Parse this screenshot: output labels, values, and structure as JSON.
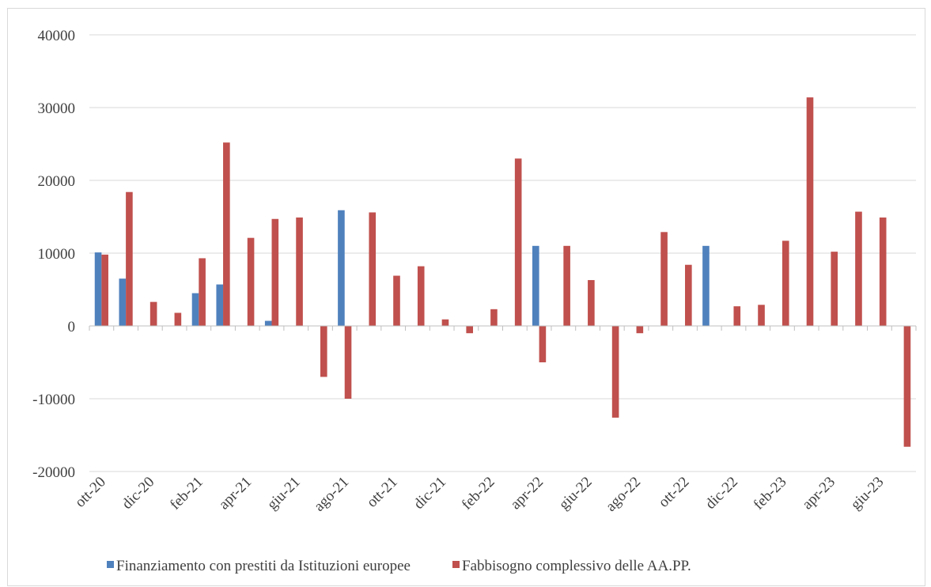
{
  "chart_data": {
    "type": "bar",
    "categories": [
      "ott-20",
      null,
      "dic-20",
      null,
      "feb-21",
      null,
      "apr-21",
      null,
      "giu-21",
      null,
      "ago-21",
      null,
      "ott-21",
      null,
      "dic-21",
      null,
      "feb-22",
      null,
      "apr-22",
      null,
      "giu-22",
      null,
      "ago-22",
      null,
      "ott-22",
      null,
      "dic-22",
      null,
      "feb-23",
      null,
      "apr-23",
      null,
      "giu-23",
      null
    ],
    "series": [
      {
        "name": "Finanziamento con prestiti da Istituzioni europee",
        "color": "#4f81bd",
        "values": [
          10100,
          6500,
          0,
          0,
          4500,
          5700,
          0,
          700,
          0,
          0,
          15900,
          0,
          0,
          0,
          0,
          0,
          0,
          0,
          11000,
          0,
          0,
          0,
          0,
          0,
          0,
          11000,
          0,
          0,
          0,
          0,
          0,
          0,
          0,
          0
        ]
      },
      {
        "name": "Fabbisogno complessivo delle AA.PP.",
        "color": "#c0504d",
        "values": [
          9800,
          18400,
          3300,
          1800,
          9300,
          25200,
          12100,
          14700,
          14900,
          -7000,
          -10000,
          15600,
          6900,
          8200,
          900,
          -1000,
          2300,
          23000,
          -5000,
          11000,
          6300,
          -12600,
          -1000,
          12900,
          8400,
          0,
          2700,
          2900,
          11700,
          31400,
          10200,
          15700,
          14900,
          -16600
        ]
      }
    ],
    "ylim": [
      -20000,
      40000
    ],
    "yticks": [
      -20000,
      -10000,
      0,
      10000,
      20000,
      30000,
      40000
    ],
    "grid": true,
    "legend": "bottom"
  }
}
